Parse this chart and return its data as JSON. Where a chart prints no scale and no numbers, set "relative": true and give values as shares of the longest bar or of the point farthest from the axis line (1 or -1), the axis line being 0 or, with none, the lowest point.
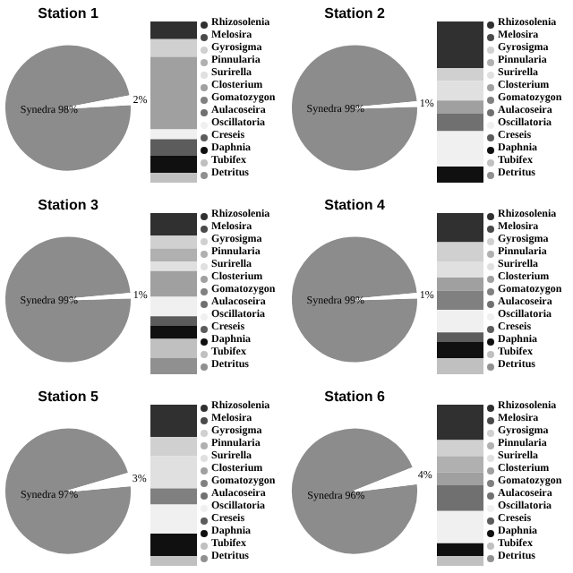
{
  "chart_data": [
    {
      "type": "pie",
      "title": "Station 1",
      "categories": [
        "Synedra",
        null
      ],
      "values": [
        98,
        2
      ],
      "colors": [
        "#8c8c8c",
        "#ffffff"
      ],
      "value_labels": [
        "98%",
        "2%"
      ]
    },
    {
      "type": "bar",
      "stacked": true,
      "relative": true,
      "legend": "right",
      "categories": [
        null
      ],
      "series": [
        {
          "name": "Detritus",
          "color": "#909090",
          "values": [
            null
          ]
        },
        {
          "name": "Tubifex",
          "color": "#c0c0c0",
          "values": [
            0.06
          ]
        },
        {
          "name": "Daphnia",
          "color": "#101010",
          "values": [
            0.11
          ]
        },
        {
          "name": "Creseis",
          "color": "#5c5c5c",
          "values": [
            0.1
          ]
        },
        {
          "name": "Oscillatoria",
          "color": "#f0f0f0",
          "values": [
            0.06
          ]
        },
        {
          "name": "Aulacoseira",
          "color": "#707070",
          "values": [
            null
          ]
        },
        {
          "name": "Gomatozygon",
          "color": "#808080",
          "values": [
            null
          ]
        },
        {
          "name": "Closterium",
          "color": "#a0a0a0",
          "values": [
            0.45
          ]
        },
        {
          "name": "Surirella",
          "color": "#e0e0e0",
          "values": [
            null
          ]
        },
        {
          "name": "Pinnularia",
          "color": "#b0b0b0",
          "values": [
            null
          ]
        },
        {
          "name": "Gyrosigma",
          "color": "#d0d0d0",
          "values": [
            0.11
          ]
        },
        {
          "name": "Melosira",
          "color": "#4a4a4a",
          "values": [
            null
          ]
        },
        {
          "name": "Rhizosolenia",
          "color": "#303030",
          "values": [
            0.11
          ]
        }
      ]
    },
    {
      "type": "pie",
      "title": "Station 2",
      "categories": [
        "Synedra",
        null
      ],
      "values": [
        99,
        1
      ],
      "colors": [
        "#8c8c8c",
        "#ffffff"
      ],
      "value_labels": [
        "99%",
        "1%"
      ]
    },
    {
      "type": "bar",
      "stacked": true,
      "relative": true,
      "legend": "right",
      "categories": [
        null
      ],
      "series": [
        {
          "name": "Detritus",
          "color": "#909090",
          "values": [
            null
          ]
        },
        {
          "name": "Tubifex",
          "color": "#c0c0c0",
          "values": [
            null
          ]
        },
        {
          "name": "Daphnia",
          "color": "#101010",
          "values": [
            0.1
          ]
        },
        {
          "name": "Creseis",
          "color": "#5c5c5c",
          "values": [
            null
          ]
        },
        {
          "name": "Oscillatoria",
          "color": "#f0f0f0",
          "values": [
            0.22
          ]
        },
        {
          "name": "Aulacoseira",
          "color": "#707070",
          "values": [
            0.11
          ]
        },
        {
          "name": "Gomatozygon",
          "color": "#808080",
          "values": [
            null
          ]
        },
        {
          "name": "Closterium",
          "color": "#a0a0a0",
          "values": [
            0.08
          ]
        },
        {
          "name": "Surirella",
          "color": "#e0e0e0",
          "values": [
            0.12
          ]
        },
        {
          "name": "Pinnularia",
          "color": "#b0b0b0",
          "values": [
            null
          ]
        },
        {
          "name": "Gyrosigma",
          "color": "#d0d0d0",
          "values": [
            0.08
          ]
        },
        {
          "name": "Melosira",
          "color": "#4a4a4a",
          "values": [
            null
          ]
        },
        {
          "name": "Rhizosolenia",
          "color": "#303030",
          "values": [
            0.29
          ]
        }
      ]
    },
    {
      "type": "pie",
      "title": "Station 3",
      "categories": [
        "Synedra",
        null
      ],
      "values": [
        99,
        1
      ],
      "colors": [
        "#8c8c8c",
        "#ffffff"
      ],
      "value_labels": [
        "99%",
        "1%"
      ]
    },
    {
      "type": "bar",
      "stacked": true,
      "relative": true,
      "legend": "right",
      "categories": [
        null
      ],
      "series": [
        {
          "name": "Detritus",
          "color": "#909090",
          "values": [
            0.1
          ]
        },
        {
          "name": "Tubifex",
          "color": "#c0c0c0",
          "values": [
            0.12
          ]
        },
        {
          "name": "Daphnia",
          "color": "#101010",
          "values": [
            0.08
          ]
        },
        {
          "name": "Creseis",
          "color": "#5c5c5c",
          "values": [
            0.06
          ]
        },
        {
          "name": "Oscillatoria",
          "color": "#f0f0f0",
          "values": [
            0.12
          ]
        },
        {
          "name": "Aulacoseira",
          "color": "#707070",
          "values": [
            null
          ]
        },
        {
          "name": "Gomatozygon",
          "color": "#808080",
          "values": [
            null
          ]
        },
        {
          "name": "Closterium",
          "color": "#a0a0a0",
          "values": [
            0.16
          ]
        },
        {
          "name": "Surirella",
          "color": "#e0e0e0",
          "values": [
            0.06
          ]
        },
        {
          "name": "Pinnularia",
          "color": "#b0b0b0",
          "values": [
            0.08
          ]
        },
        {
          "name": "Gyrosigma",
          "color": "#d0d0d0",
          "values": [
            0.08
          ]
        },
        {
          "name": "Melosira",
          "color": "#4a4a4a",
          "values": [
            null
          ]
        },
        {
          "name": "Rhizosolenia",
          "color": "#303030",
          "values": [
            0.14
          ]
        }
      ]
    },
    {
      "type": "pie",
      "title": "Station 4",
      "categories": [
        "Synedra",
        null
      ],
      "values": [
        99,
        1
      ],
      "colors": [
        "#8c8c8c",
        "#ffffff"
      ],
      "value_labels": [
        "99%",
        "1%"
      ]
    },
    {
      "type": "bar",
      "stacked": true,
      "relative": true,
      "legend": "right",
      "categories": [
        null
      ],
      "series": [
        {
          "name": "Detritus",
          "color": "#909090",
          "values": [
            null
          ]
        },
        {
          "name": "Tubifex",
          "color": "#c0c0c0",
          "values": [
            0.1
          ]
        },
        {
          "name": "Daphnia",
          "color": "#101010",
          "values": [
            0.1
          ]
        },
        {
          "name": "Creseis",
          "color": "#5c5c5c",
          "values": [
            0.06
          ]
        },
        {
          "name": "Oscillatoria",
          "color": "#f0f0f0",
          "values": [
            0.14
          ]
        },
        {
          "name": "Aulacoseira",
          "color": "#707070",
          "values": [
            null
          ]
        },
        {
          "name": "Gomatozygon",
          "color": "#808080",
          "values": [
            0.12
          ]
        },
        {
          "name": "Closterium",
          "color": "#a0a0a0",
          "values": [
            0.08
          ]
        },
        {
          "name": "Surirella",
          "color": "#e0e0e0",
          "values": [
            0.1
          ]
        },
        {
          "name": "Pinnularia",
          "color": "#b0b0b0",
          "values": [
            null
          ]
        },
        {
          "name": "Gyrosigma",
          "color": "#d0d0d0",
          "values": [
            0.12
          ]
        },
        {
          "name": "Melosira",
          "color": "#4a4a4a",
          "values": [
            null
          ]
        },
        {
          "name": "Rhizosolenia",
          "color": "#303030",
          "values": [
            0.18
          ]
        }
      ]
    },
    {
      "type": "pie",
      "title": "Station 5",
      "categories": [
        "Synedra",
        null
      ],
      "values": [
        97,
        3
      ],
      "colors": [
        "#8c8c8c",
        "#ffffff"
      ],
      "value_labels": [
        "97%",
        "3%"
      ]
    },
    {
      "type": "bar",
      "stacked": true,
      "relative": true,
      "legend": "right",
      "categories": [
        null
      ],
      "series": [
        {
          "name": "Detritus",
          "color": "#909090",
          "values": [
            null
          ]
        },
        {
          "name": "Tubifex",
          "color": "#c0c0c0",
          "values": [
            0.06
          ]
        },
        {
          "name": "Daphnia",
          "color": "#101010",
          "values": [
            0.14
          ]
        },
        {
          "name": "Creseis",
          "color": "#5c5c5c",
          "values": [
            null
          ]
        },
        {
          "name": "Oscillatoria",
          "color": "#f0f0f0",
          "values": [
            0.18
          ]
        },
        {
          "name": "Aulacoseira",
          "color": "#707070",
          "values": [
            null
          ]
        },
        {
          "name": "Gomatozygon",
          "color": "#808080",
          "values": [
            0.1
          ]
        },
        {
          "name": "Closterium",
          "color": "#a0a0a0",
          "values": [
            null
          ]
        },
        {
          "name": "Surirella",
          "color": "#e0e0e0",
          "values": [
            0.2
          ]
        },
        {
          "name": "Pinnularia",
          "color": "#b0b0b0",
          "values": [
            null
          ]
        },
        {
          "name": "Gyrosigma",
          "color": "#d0d0d0",
          "values": [
            0.12
          ]
        },
        {
          "name": "Melosira",
          "color": "#4a4a4a",
          "values": [
            null
          ]
        },
        {
          "name": "Rhizosolenia",
          "color": "#303030",
          "values": [
            0.2
          ]
        }
      ]
    },
    {
      "type": "pie",
      "title": "Station 6",
      "categories": [
        "Synedra",
        null
      ],
      "values": [
        96,
        4
      ],
      "colors": [
        "#8c8c8c",
        "#ffffff"
      ],
      "value_labels": [
        "96%",
        "4%"
      ]
    },
    {
      "type": "bar",
      "stacked": true,
      "relative": true,
      "legend": "right",
      "categories": [
        null
      ],
      "series": [
        {
          "name": "Detritus",
          "color": "#909090",
          "values": [
            null
          ]
        },
        {
          "name": "Tubifex",
          "color": "#c0c0c0",
          "values": [
            0.06
          ]
        },
        {
          "name": "Daphnia",
          "color": "#101010",
          "values": [
            0.08
          ]
        },
        {
          "name": "Creseis",
          "color": "#5c5c5c",
          "values": [
            null
          ]
        },
        {
          "name": "Oscillatoria",
          "color": "#f0f0f0",
          "values": [
            0.2
          ]
        },
        {
          "name": "Aulacoseira",
          "color": "#707070",
          "values": [
            0.16
          ]
        },
        {
          "name": "Gomatozygon",
          "color": "#808080",
          "values": [
            null
          ]
        },
        {
          "name": "Closterium",
          "color": "#a0a0a0",
          "values": [
            0.08
          ]
        },
        {
          "name": "Surirella",
          "color": "#e0e0e0",
          "values": [
            null
          ]
        },
        {
          "name": "Pinnularia",
          "color": "#b0b0b0",
          "values": [
            0.1
          ]
        },
        {
          "name": "Gyrosigma",
          "color": "#d0d0d0",
          "values": [
            0.1
          ]
        },
        {
          "name": "Melosira",
          "color": "#4a4a4a",
          "values": [
            null
          ]
        },
        {
          "name": "Rhizosolenia",
          "color": "#303030",
          "values": [
            0.22
          ]
        }
      ]
    }
  ]
}
